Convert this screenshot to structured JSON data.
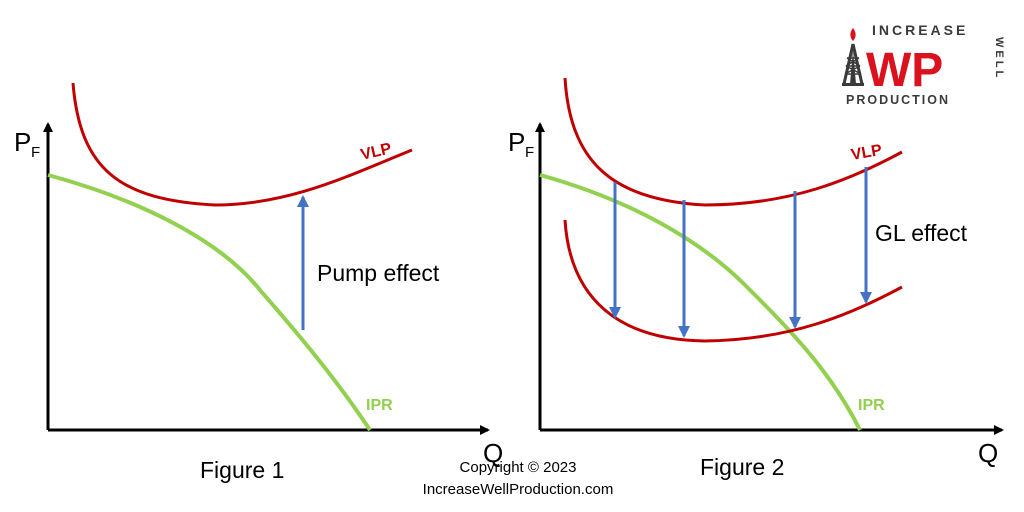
{
  "figure1": {
    "caption": "Figure 1",
    "y_axis_label": "P",
    "y_axis_subscript": "F",
    "x_axis_label": "Q",
    "vlp_label": "VLP",
    "ipr_label": "IPR",
    "annotation": "Pump effect"
  },
  "figure2": {
    "caption": "Figure 2",
    "y_axis_label": "P",
    "y_axis_subscript": "F",
    "x_axis_label": "Q",
    "vlp_label": "VLP",
    "ipr_label": "IPR",
    "annotation": "GL effect"
  },
  "copyright": {
    "line1": "Copyright © 2023",
    "line2": "IncreaseWellProduction.com"
  },
  "logo": {
    "top": "INCREASE",
    "initials": "WP",
    "side": "WELL",
    "bottom": "PRODUCTION"
  },
  "colors": {
    "vlp": "#c00000",
    "ipr": "#92d050",
    "arrow": "#4472c4",
    "logo_dark": "#3a3a3a",
    "logo_red": "#d9121e"
  }
}
